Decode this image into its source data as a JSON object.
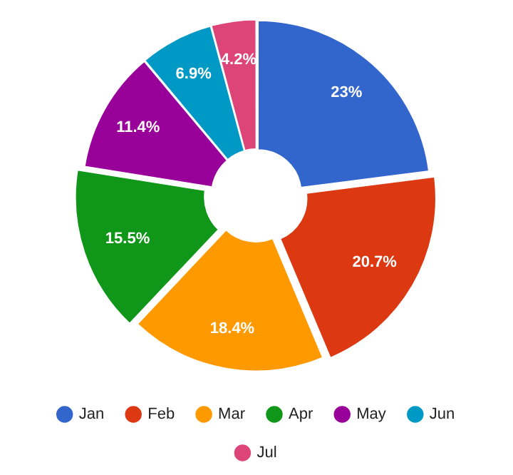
{
  "chart_data": {
    "type": "donut",
    "categories": [
      "Jan",
      "Feb",
      "Mar",
      "Apr",
      "May",
      "Jun",
      "Jul"
    ],
    "values": [
      23,
      20.7,
      18.4,
      15.5,
      11.4,
      6.9,
      4.2
    ],
    "colors": [
      "#3366cc",
      "#dc3912",
      "#ff9900",
      "#109618",
      "#990099",
      "#0099c6",
      "#dd4477"
    ],
    "value_labels": [
      "23%",
      "20.7%",
      "18.4%",
      "15.5%",
      "11.4%",
      "6.9%",
      "4.2%"
    ],
    "legend": "bottom"
  }
}
